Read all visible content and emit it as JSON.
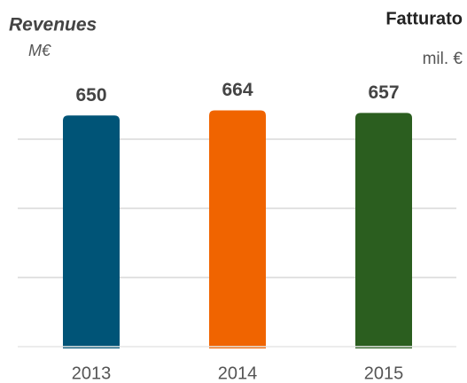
{
  "chart_data": {
    "type": "bar",
    "title": "Revenues",
    "subtitle": "M€",
    "title_it": "Fatturato",
    "subtitle_it": "mil. €",
    "categories": [
      "2013",
      "2014",
      "2015"
    ],
    "values": [
      650,
      664,
      657
    ],
    "colors": [
      "#005477",
      "#f06400",
      "#2b5e1f"
    ],
    "ylim": [
      0,
      700
    ]
  }
}
